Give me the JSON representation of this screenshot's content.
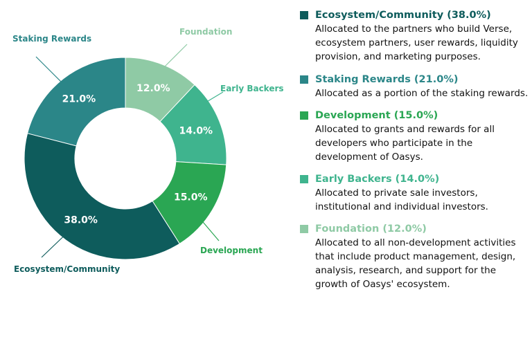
{
  "chart_data": {
    "type": "pie",
    "donut": true,
    "slices": [
      {
        "name": "Foundation",
        "value": 12.0,
        "label": "12.0%",
        "color": "#8fcaa5"
      },
      {
        "name": "Early Backers",
        "value": 14.0,
        "label": "14.0%",
        "color": "#3fb48e"
      },
      {
        "name": "Development",
        "value": 15.0,
        "label": "15.0%",
        "color": "#2aa653"
      },
      {
        "name": "Ecosystem/Community",
        "value": 38.0,
        "label": "38.0%",
        "color": "#0e5c5c"
      },
      {
        "name": "Staking Rewards",
        "value": 21.0,
        "label": "21.0%",
        "color": "#2b8688"
      }
    ]
  },
  "legend": [
    {
      "title": "Ecosystem/Community (38.0%)",
      "color": "#0e5c5c",
      "title_color": "#0e5c5c",
      "description": [
        "Allocated to the partners who build Verse,",
        "ecosystem partners, user rewards, liquidity",
        "provision, and marketing purposes."
      ]
    },
    {
      "title": "Staking Rewards (21.0%)",
      "color": "#2b8688",
      "title_color": "#2b8688",
      "description": [
        "Allocated as a portion of the staking rewards."
      ]
    },
    {
      "title": "Development (15.0%)",
      "color": "#2aa653",
      "title_color": "#2aa653",
      "description": [
        "Allocated to grants and rewards for all",
        "developers who participate in the",
        "development of Oasys."
      ]
    },
    {
      "title": "Early Backers (14.0%)",
      "color": "#3fb48e",
      "title_color": "#3fb48e",
      "description": [
        "Allocated to private sale investors,",
        "institutional and individual investors."
      ]
    },
    {
      "title": "Foundation (12.0%)",
      "color": "#8fcaa5",
      "title_color": "#8fcaa5",
      "description": [
        "Allocated to all non-development activities",
        "that include product management, design,",
        "analysis, research, and support for the",
        "growth of Oasys' ecosystem."
      ]
    }
  ]
}
